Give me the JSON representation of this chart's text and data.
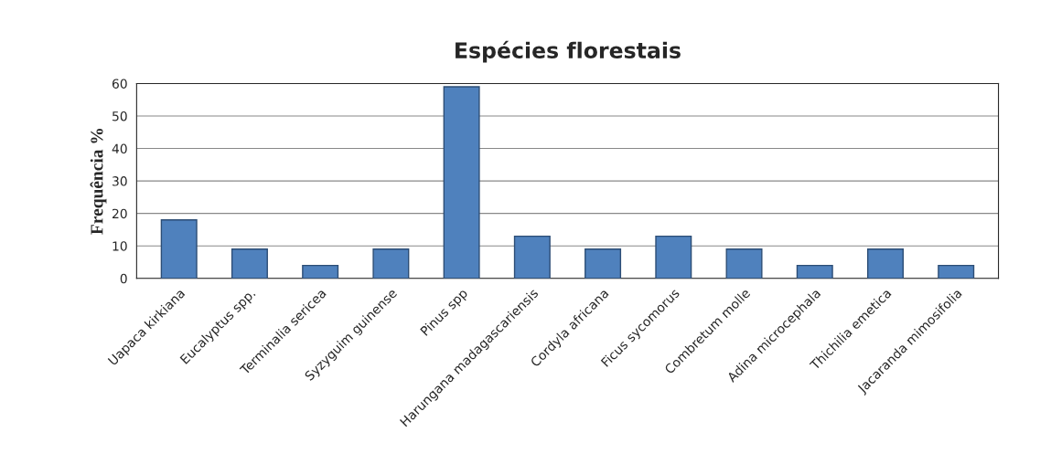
{
  "chart_data": {
    "type": "bar",
    "title": "Espécies florestais",
    "ylabel": "Frequência %",
    "categories": [
      "Uapaca kirkiana",
      "Eucalyptus spp.",
      "Terminalia sericea",
      "Syzyguim guinense",
      "Pinus spp",
      "Harungana madagascariensis",
      "Cordyla africana",
      "Ficus sycomorus",
      "Combretum molle",
      "Adina microcephala",
      "Thichilia emetica",
      "Jacaranda mimosifolia"
    ],
    "values": [
      18,
      9,
      4,
      9,
      59,
      13,
      9,
      13,
      9,
      4,
      9,
      4
    ],
    "color": "#4f81bd",
    "ylim": [
      0,
      60
    ],
    "yticks": [
      0,
      10,
      20,
      30,
      40,
      50,
      60
    ],
    "grid": "y"
  }
}
